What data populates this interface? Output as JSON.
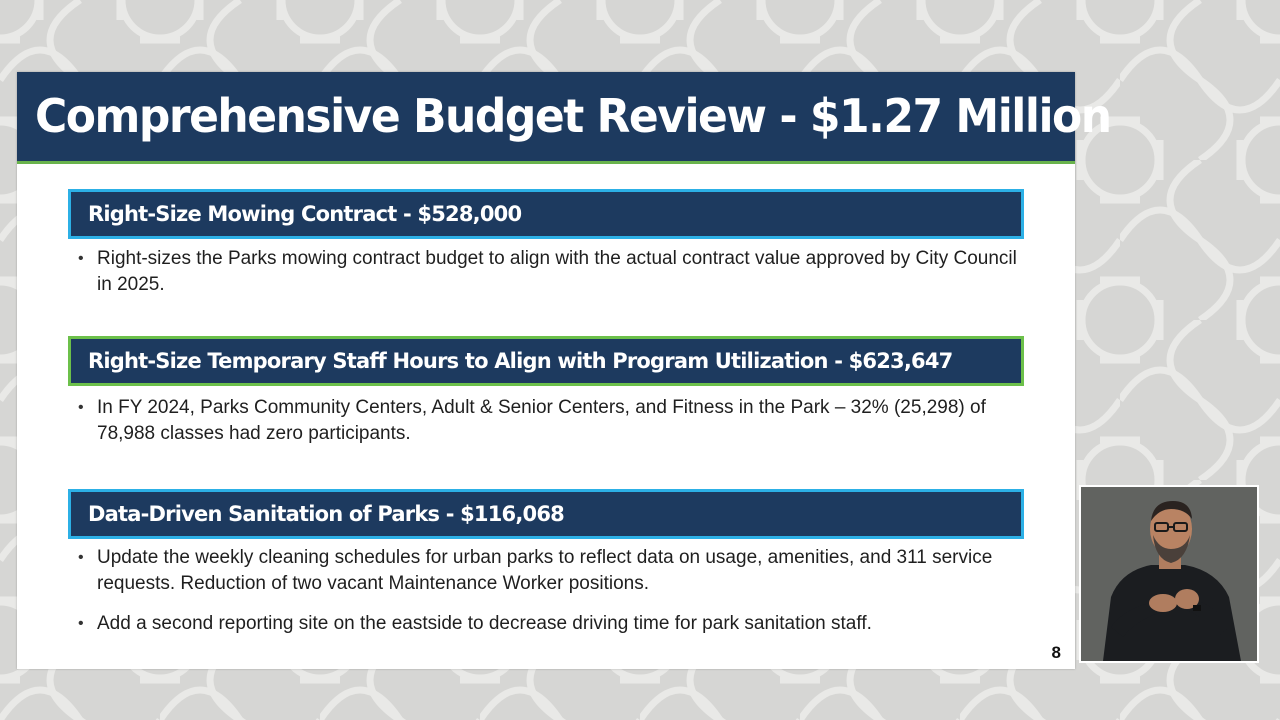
{
  "slide": {
    "title": "Comprehensive Budget Review - $1.27 Million",
    "page_number": "8",
    "sections": [
      {
        "heading": "Right-Size Mowing Contract - $528,000",
        "bullets": [
          "Right-sizes the Parks mowing contract budget to align with the actual contract value approved by City Council in 2025."
        ]
      },
      {
        "heading": "Right-Size Temporary Staff Hours to Align with Program Utilization - $623,647",
        "bullets": [
          "In FY 2024, Parks Community Centers, Adult & Senior Centers, and Fitness in the Park – 32% (25,298) of 78,988 classes had zero participants."
        ]
      },
      {
        "heading": "Data-Driven Sanitation of Parks - $116,068",
        "bullets": [
          "Update the weekly cleaning schedules for urban parks to reflect data on usage, amenities, and 311 service requests. Reduction of two vacant Maintenance Worker positions.",
          "Add a second reporting site on the eastside to decrease driving time for park sanitation staff."
        ]
      }
    ]
  },
  "colors": {
    "title_bar": "#1d3a5f",
    "accent_green": "#6cc04a",
    "accent_blue": "#2cb0e6"
  }
}
